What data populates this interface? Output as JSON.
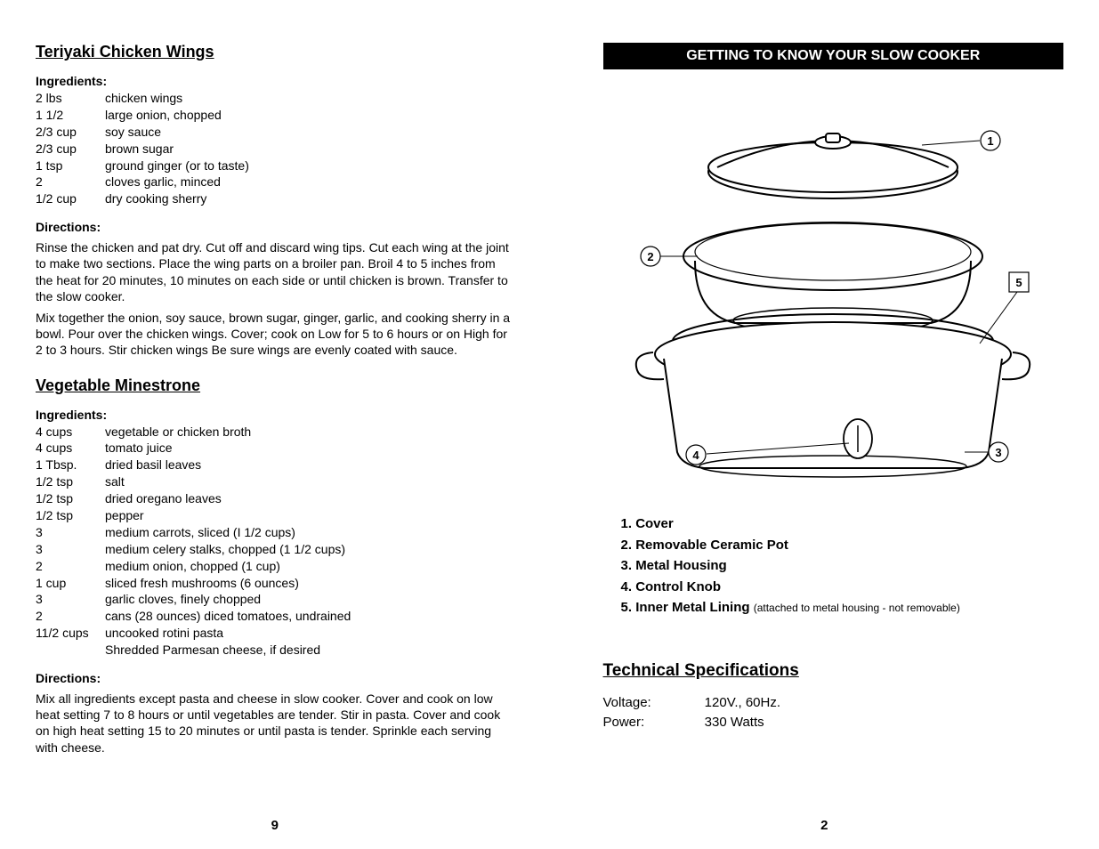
{
  "left": {
    "recipe1": {
      "title": "Teriyaki Chicken Wings",
      "ingredients_label": "Ingredients:",
      "ingredients": [
        {
          "qty": "2 lbs",
          "item": "chicken wings"
        },
        {
          "qty": "1 1/2",
          "item": "large onion, chopped"
        },
        {
          "qty": "2/3 cup",
          "item": "soy sauce"
        },
        {
          "qty": "2/3 cup",
          "item": "brown sugar"
        },
        {
          "qty": "1 tsp",
          "item": "ground ginger (or to taste)"
        },
        {
          "qty": "2",
          "item": "cloves garlic, minced"
        },
        {
          "qty": "1/2 cup",
          "item": "dry cooking sherry"
        }
      ],
      "directions_label": "Directions:",
      "directions": [
        "Rinse the chicken and pat dry. Cut off and discard wing tips. Cut each wing at the joint to make two sections. Place the wing parts on a broiler pan. Broil 4 to 5 inches from the heat for 20 minutes, 10 minutes on each side or until chicken is brown. Transfer to the slow cooker.",
        "Mix together the onion, soy sauce, brown sugar, ginger, garlic, and cooking sherry in a bowl. Pour over the chicken wings. Cover; cook on Low for 5 to 6 hours or on High for 2 to 3 hours. Stir chicken wings  Be sure wings are evenly coated with sauce."
      ]
    },
    "recipe2": {
      "title": "Vegetable Minestrone",
      "ingredients_label": "Ingredients:",
      "ingredients": [
        {
          "qty": "4 cups",
          "item": "vegetable or chicken broth"
        },
        {
          "qty": "4 cups",
          "item": "tomato juice"
        },
        {
          "qty": "1 Tbsp.",
          "item": "dried basil leaves"
        },
        {
          "qty": "1/2 tsp",
          "item": "salt"
        },
        {
          "qty": "1/2 tsp",
          "item": "dried oregano leaves"
        },
        {
          "qty": "1/2 tsp",
          "item": "pepper"
        },
        {
          "qty": "3",
          "item": "medium carrots, sliced (I 1/2 cups)"
        },
        {
          "qty": "3",
          "item": "medium celery stalks, chopped (1 1/2 cups)"
        },
        {
          "qty": "2",
          "item": "medium onion, chopped (1 cup)"
        },
        {
          "qty": "1 cup",
          "item": "sliced fresh mushrooms (6 ounces)"
        },
        {
          "qty": "3",
          "item": "garlic cloves, finely chopped"
        },
        {
          "qty": "2",
          "item": "cans (28 ounces) diced tomatoes, undrained"
        },
        {
          "qty": "11/2 cups",
          "item": "uncooked rotini pasta"
        },
        {
          "qty": "",
          "item": "Shredded Parmesan cheese, if desired"
        }
      ],
      "directions_label": "Directions:",
      "directions": [
        "Mix all ingredients except pasta and cheese in slow cooker.  Cover and cook on low heat setting 7 to 8 hours or until vegetables are tender.  Stir in pasta. Cover and cook on high heat setting 15 to 20 minutes or until pasta is tender. Sprinkle each serving with cheese."
      ]
    },
    "page_num": "9"
  },
  "right": {
    "header_bar": "GETTING TO KNOW  YOUR SLOW COOKER",
    "diagram": {
      "callouts": [
        "1",
        "2",
        "3",
        "4",
        "5"
      ],
      "stroke": "#000000",
      "fill": "#ffffff"
    },
    "parts": [
      {
        "num": "1.",
        "label": "Cover",
        "note": ""
      },
      {
        "num": "2.",
        "label": "Removable Ceramic Pot",
        "note": ""
      },
      {
        "num": "3.",
        "label": "Metal Housing",
        "note": ""
      },
      {
        "num": "4.",
        "label": "Control Knob",
        "note": ""
      },
      {
        "num": "5.",
        "label": "Inner Metal Lining",
        "note": "(attached to metal housing - not removable)"
      }
    ],
    "tech_heading": "Technical Specifications",
    "specs": [
      {
        "label": "Voltage:",
        "value": "120V.,  60Hz."
      },
      {
        "label": "Power:",
        "value": "330 Watts"
      }
    ],
    "page_num": "2"
  }
}
